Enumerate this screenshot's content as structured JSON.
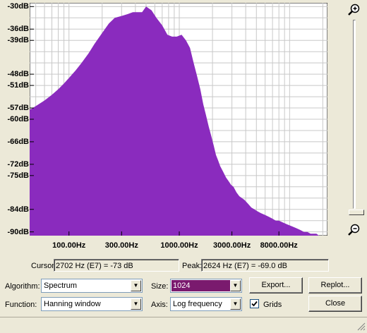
{
  "chart_data": {
    "type": "area",
    "x_scale": "log",
    "xlim_hz": [
      44,
      22050
    ],
    "ylim_db": [
      -91,
      -29
    ],
    "grid": true,
    "fill_color": "#8a2bbe",
    "y_tick_labels": [
      {
        "label": "-30dB",
        "db": -30
      },
      {
        "label": "-36dB",
        "db": -36
      },
      {
        "label": "-39dB",
        "db": -39
      },
      {
        "label": "-48dB",
        "db": -48
      },
      {
        "label": "-51dB",
        "db": -51
      },
      {
        "label": "-57dB",
        "db": -57
      },
      {
        "label": "-60dB",
        "db": -60
      },
      {
        "label": "-66dB",
        "db": -66
      },
      {
        "label": "-72dB",
        "db": -72
      },
      {
        "label": "-75dB",
        "db": -75
      },
      {
        "label": "-84dB",
        "db": -84
      },
      {
        "label": "-90dB",
        "db": -90
      }
    ],
    "x_tick_labels": [
      {
        "label": "100.00Hz",
        "hz": 100
      },
      {
        "label": "300.00Hz",
        "hz": 300
      },
      {
        "label": "1000.00Hz",
        "hz": 1000
      },
      {
        "label": "3000.00Hz",
        "hz": 3000
      },
      {
        "label": "8000.00Hz",
        "hz": 8000
      }
    ],
    "spectrum": {
      "hz": [
        44,
        50,
        60,
        70,
        80,
        90,
        100,
        115,
        130,
        150,
        170,
        200,
        230,
        260,
        300,
        340,
        380,
        420,
        460,
        500,
        560,
        620,
        700,
        780,
        860,
        950,
        1050,
        1150,
        1250,
        1350,
        1450,
        1550,
        1650,
        1750,
        1850,
        1950,
        2050,
        2150,
        2250,
        2350,
        2500,
        2650,
        2800,
        2950,
        3100,
        3300,
        3500,
        3700,
        3900,
        4200,
        4500,
        4800,
        5100,
        5500,
        6000,
        6500,
        7000,
        7500,
        8000,
        8700,
        9500,
        10500,
        11500,
        12500,
        13500,
        14500,
        15500,
        16500,
        17500,
        18500,
        19500,
        20500,
        21500,
        22050
      ],
      "db": [
        -57.5,
        -56.5,
        -55,
        -53.5,
        -52,
        -50.5,
        -49,
        -47,
        -45,
        -42.5,
        -40,
        -37,
        -34.5,
        -33,
        -32.5,
        -32,
        -31.5,
        -31.5,
        -31.5,
        -30,
        -31,
        -33,
        -35,
        -37.5,
        -38,
        -38,
        -37.5,
        -39,
        -41,
        -45,
        -48.5,
        -52,
        -56,
        -59,
        -62,
        -64.5,
        -67,
        -69.5,
        -71,
        -72.5,
        -74,
        -75.5,
        -76.5,
        -77.5,
        -78,
        -79.5,
        -80.5,
        -81,
        -81.5,
        -82.5,
        -83.5,
        -84,
        -84.5,
        -85,
        -85.5,
        -86,
        -86.5,
        -87,
        -87,
        -87.5,
        -88,
        -88.5,
        -89,
        -89.5,
        -90,
        -90,
        -90.5,
        -90.5,
        -90.5,
        -91,
        -91,
        -91,
        -91,
        -91
      ]
    }
  },
  "cursor": {
    "label": "Cursor:",
    "value": "2702 Hz (E7) = -73 dB"
  },
  "peak": {
    "label": "Peak:",
    "value": "2624 Hz (E7) = -69.0 dB"
  },
  "controls": {
    "algorithm_label": "Algorithm:",
    "algorithm_value": "Spectrum",
    "function_label": "Function:",
    "function_value": "Hanning window",
    "size_label": "Size:",
    "size_value": "1024",
    "axis_label": "Axis:",
    "axis_value": "Log frequency",
    "grids_label": "Grids",
    "grids_checked": true,
    "export_label": "Export...",
    "replot_label": "Replot...",
    "close_label": "Close"
  },
  "colors": {
    "selected_bg": "#7a1a6e",
    "plot_fill": "#8a2bbe"
  }
}
